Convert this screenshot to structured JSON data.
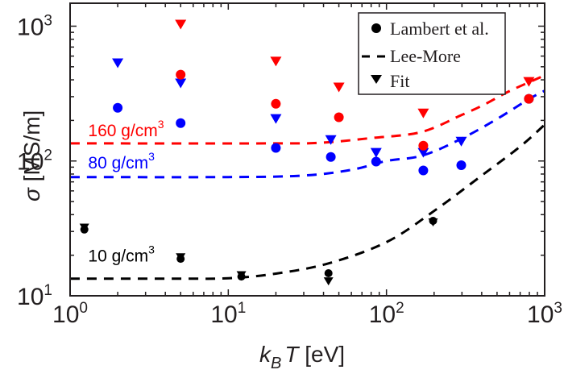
{
  "chart_data": {
    "type": "scatter",
    "title": "",
    "xlabel": {
      "main": "k",
      "sub": "B",
      "rest": "T [eV]"
    },
    "ylabel": {
      "symbol": "σ",
      "unit": " [MS/m]"
    },
    "xscale": "log",
    "yscale": "log",
    "xlim": [
      1,
      1000
    ],
    "ylim": [
      10,
      1480
    ],
    "x_ticks": [
      {
        "value": 1,
        "base": "10",
        "exp": "0"
      },
      {
        "value": 10,
        "base": "10",
        "exp": "1"
      },
      {
        "value": 100,
        "base": "10",
        "exp": "2"
      },
      {
        "value": 1000,
        "base": "10",
        "exp": "3"
      }
    ],
    "y_ticks": [
      {
        "value": 10,
        "base": "10",
        "exp": "1"
      },
      {
        "value": 100,
        "base": "10",
        "exp": "2"
      },
      {
        "value": 1000,
        "base": "10",
        "exp": "3"
      }
    ],
    "grid": false,
    "legend": {
      "position": "top-right",
      "entries": [
        {
          "label": "Lambert et al.",
          "marker": "circle"
        },
        {
          "label": "Lee-More",
          "marker": "dashed-line"
        },
        {
          "label": "Fit",
          "marker": "triangle-down"
        }
      ]
    },
    "colors": {
      "10": "#000000",
      "80": "#0000ff",
      "160": "#ff0000",
      "axis": "#231f20"
    },
    "annotations": [
      {
        "series": "10",
        "text": "10 g/cm",
        "sup": "3",
        "at": [
          1.3,
          18
        ]
      },
      {
        "series": "80",
        "text": "80 g/cm",
        "sup": "3",
        "at": [
          1.3,
          88
        ]
      },
      {
        "series": "160",
        "text": "160 g/cm",
        "sup": "3",
        "at": [
          1.3,
          153
        ]
      }
    ],
    "series": [
      {
        "name": "10 g/cm3",
        "key": "10",
        "lambert": [
          [
            1.23,
            31
          ],
          [
            5,
            18.8
          ],
          [
            12.1,
            13.9
          ],
          [
            43,
            14.7
          ],
          [
            197,
            36
          ]
        ],
        "fit": [
          [
            1.23,
            32
          ],
          [
            5,
            19.3
          ],
          [
            12.1,
            14.2
          ],
          [
            43,
            12.8
          ],
          [
            197,
            35
          ]
        ],
        "lee_more": [
          [
            1,
            13.4
          ],
          [
            5,
            13.4
          ],
          [
            10,
            13.5
          ],
          [
            20,
            14.6
          ],
          [
            43,
            17.4
          ],
          [
            100,
            25
          ],
          [
            200,
            42.6
          ],
          [
            400,
            78
          ],
          [
            700,
            128
          ],
          [
            1000,
            186
          ]
        ]
      },
      {
        "name": "80 g/cm3",
        "key": "80",
        "lambert": [
          [
            2,
            248
          ],
          [
            5,
            191
          ],
          [
            20,
            125
          ],
          [
            44.5,
            107
          ],
          [
            86,
            99
          ],
          [
            171,
            85
          ],
          [
            297,
            93
          ],
          [
            795,
            289
          ]
        ],
        "fit": [
          [
            2,
            531
          ],
          [
            5,
            376
          ],
          [
            20,
            205
          ],
          [
            44.5,
            143
          ],
          [
            86,
            115
          ],
          [
            171,
            115
          ],
          [
            297,
            139
          ]
        ],
        "lee_more": [
          [
            1,
            76
          ],
          [
            10,
            76
          ],
          [
            30,
            78
          ],
          [
            60,
            86
          ],
          [
            100,
            100
          ],
          [
            170,
            110
          ],
          [
            300,
            147
          ],
          [
            500,
            205
          ],
          [
            800,
            289
          ],
          [
            1000,
            332
          ]
        ]
      },
      {
        "name": "160 g/cm3",
        "key": "160",
        "lambert": [
          [
            5,
            437
          ],
          [
            20,
            266
          ],
          [
            50,
            211
          ],
          [
            171,
            130
          ],
          [
            795,
            289
          ]
        ],
        "fit": [
          [
            5,
            1028
          ],
          [
            20,
            546
          ],
          [
            50,
            351
          ],
          [
            171,
            225
          ],
          [
            795,
            386
          ]
        ],
        "lee_more": [
          [
            1,
            135
          ],
          [
            20,
            135
          ],
          [
            40,
            137
          ],
          [
            80,
            148
          ],
          [
            166,
            164
          ],
          [
            300,
            220
          ],
          [
            410,
            260
          ],
          [
            600,
            330
          ],
          [
            1000,
            431
          ]
        ]
      }
    ]
  }
}
